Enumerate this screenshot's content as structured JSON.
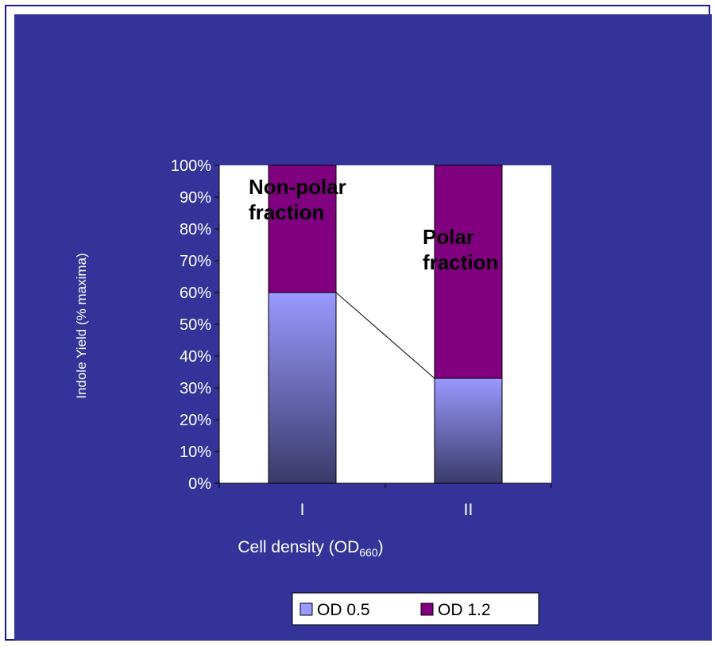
{
  "colors": {
    "background": "#333399",
    "plot_background": "#ffffff",
    "od05_top": "#9999ff",
    "od05_bottom": "#3a3a6a",
    "od12": "#800080",
    "text_dark": "#000000",
    "text_light": "#ffffff"
  },
  "chart_data": {
    "type": "bar",
    "stacked": true,
    "percent": true,
    "categories": [
      "I",
      "II"
    ],
    "series": [
      {
        "name": "OD 0.5",
        "values": [
          60,
          33
        ]
      },
      {
        "name": "OD 1.2",
        "values": [
          40,
          67
        ]
      }
    ],
    "ylim": [
      0,
      100
    ],
    "yticks": [
      "0%",
      "10%",
      "20%",
      "30%",
      "40%",
      "50%",
      "60%",
      "70%",
      "80%",
      "90%",
      "100%"
    ],
    "xlabel": "Cell density (OD",
    "xlabel_sub": "660",
    "xlabel_end": ")",
    "ylabel": "Indole Yield (% maxima)",
    "grid": false,
    "legend_position": "bottom",
    "series_line": true,
    "annotations": [
      {
        "lines": [
          "Non-polar",
          "fraction"
        ],
        "category": "I"
      },
      {
        "lines": [
          "Polar",
          "fraction"
        ],
        "category": "II"
      }
    ]
  }
}
